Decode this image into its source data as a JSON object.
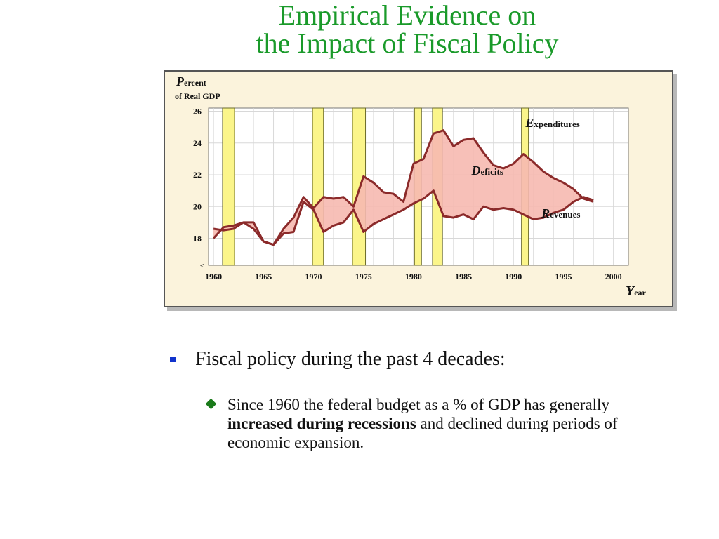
{
  "slide": {
    "title_line1": "Empirical Evidence on",
    "title_line2": "the Impact of Fiscal Policy",
    "bullet1": "Fiscal policy during the past 4 decades:",
    "bullet2_part1": "Since 1960 the federal budget as a % of GDP has generally ",
    "bullet2_bold": "increased during recessions",
    "bullet2_part2": " and declined during periods of economic expansion."
  },
  "chart_data": {
    "type": "line",
    "ylabel_cap": "P",
    "ylabel_rest": "ercent",
    "ylabel_line2": "of Real GDP",
    "xlabel_cap": "Y",
    "xlabel_rest": "ear",
    "xlim": [
      1959.5,
      2001.5
    ],
    "ylim": [
      16.3,
      26.2
    ],
    "x_ticks": [
      1960,
      1965,
      1970,
      1975,
      1980,
      1985,
      1990,
      1995,
      2000
    ],
    "y_ticks": [
      18,
      20,
      22,
      24,
      26
    ],
    "recessions": [
      [
        1960.9,
        1962.1
      ],
      [
        1969.9,
        1971.0
      ],
      [
        1973.9,
        1975.2
      ],
      [
        1980.1,
        1980.8
      ],
      [
        1981.9,
        1982.9
      ],
      [
        1990.8,
        1991.5
      ]
    ],
    "annotations": [
      {
        "cap": "E",
        "rest": "xpenditures",
        "x": 1991.2,
        "y": 25.0
      },
      {
        "cap": "D",
        "rest": "eficits",
        "x": 1985.8,
        "y": 22.0
      },
      {
        "cap": "R",
        "rest": "evenues",
        "x": 1992.8,
        "y": 19.3
      }
    ],
    "series": [
      {
        "name": "Expenditures",
        "x": [
          1960,
          1961,
          1962,
          1963,
          1964,
          1965,
          1966,
          1967,
          1968,
          1969,
          1970,
          1971,
          1972,
          1973,
          1974,
          1975,
          1976,
          1977,
          1978,
          1979,
          1980,
          1981,
          1982,
          1983,
          1984,
          1985,
          1986,
          1987,
          1988,
          1989,
          1990,
          1991,
          1992,
          1993,
          1994,
          1995,
          1996,
          1997,
          1998
        ],
        "values": [
          18.0,
          18.7,
          18.8,
          19.0,
          19.0,
          17.8,
          17.6,
          18.6,
          19.3,
          20.6,
          19.9,
          20.6,
          20.5,
          20.6,
          20.0,
          21.9,
          21.5,
          20.9,
          20.8,
          20.3,
          22.7,
          23.0,
          24.6,
          24.8,
          23.8,
          24.2,
          24.3,
          23.4,
          22.6,
          22.4,
          22.7,
          23.3,
          22.8,
          22.2,
          21.8,
          21.5,
          21.1,
          20.5,
          20.3
        ]
      },
      {
        "name": "Revenues",
        "x": [
          1960,
          1961,
          1962,
          1963,
          1964,
          1965,
          1966,
          1967,
          1968,
          1969,
          1970,
          1971,
          1972,
          1973,
          1974,
          1975,
          1976,
          1977,
          1978,
          1979,
          1980,
          1981,
          1982,
          1983,
          1984,
          1985,
          1986,
          1987,
          1988,
          1989,
          1990,
          1991,
          1992,
          1993,
          1994,
          1995,
          1996,
          1997,
          1998
        ],
        "values": [
          18.6,
          18.5,
          18.6,
          19.0,
          18.6,
          17.8,
          17.6,
          18.3,
          18.4,
          20.3,
          19.8,
          18.4,
          18.8,
          19.0,
          19.8,
          18.4,
          18.9,
          19.2,
          19.5,
          19.8,
          20.2,
          20.5,
          21.0,
          19.4,
          19.3,
          19.5,
          19.2,
          20.0,
          19.8,
          19.9,
          19.8,
          19.5,
          19.2,
          19.3,
          19.6,
          19.8,
          20.3,
          20.6,
          20.4
        ]
      }
    ]
  }
}
